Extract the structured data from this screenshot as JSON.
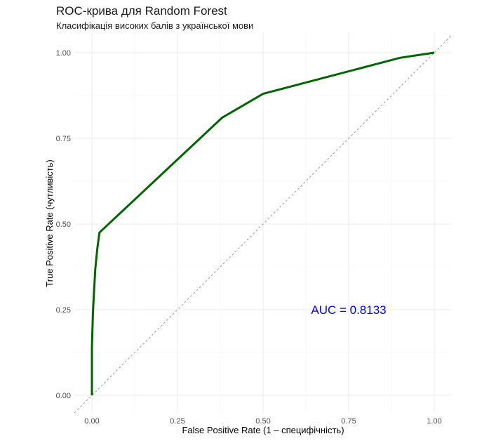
{
  "chart_data": {
    "type": "line",
    "title": "ROC-крива для Random Forest",
    "subtitle": "Класифікація високих балів з української мови",
    "xlabel": "False Positive Rate (1 – специфічність)",
    "ylabel": "True Positive Rate (чутливість)",
    "xlim": [
      0,
      1
    ],
    "ylim": [
      0,
      1
    ],
    "x_ticks": [
      "0.00",
      "0.25",
      "0.50",
      "0.75",
      "1.00"
    ],
    "y_ticks": [
      "0.00",
      "0.25",
      "0.50",
      "0.75",
      "1.00"
    ],
    "grid": true,
    "series": [
      {
        "color": "#006400",
        "points": [
          [
            0.0,
            0.0
          ],
          [
            0.0,
            0.14
          ],
          [
            0.003,
            0.24
          ],
          [
            0.006,
            0.3
          ],
          [
            0.01,
            0.37
          ],
          [
            0.016,
            0.43
          ],
          [
            0.022,
            0.475
          ],
          [
            0.38,
            0.81
          ],
          [
            0.5,
            0.88
          ],
          [
            0.9,
            0.985
          ],
          [
            1.0,
            1.0
          ]
        ]
      }
    ],
    "reference_line": {
      "from": [
        0,
        0
      ],
      "to": [
        1,
        1
      ],
      "style": "dashed",
      "color": "#9a9a9a"
    },
    "annotation": {
      "text": "AUC = 0.8133",
      "x": 0.75,
      "y": 0.25,
      "color": "#0000ff"
    }
  }
}
